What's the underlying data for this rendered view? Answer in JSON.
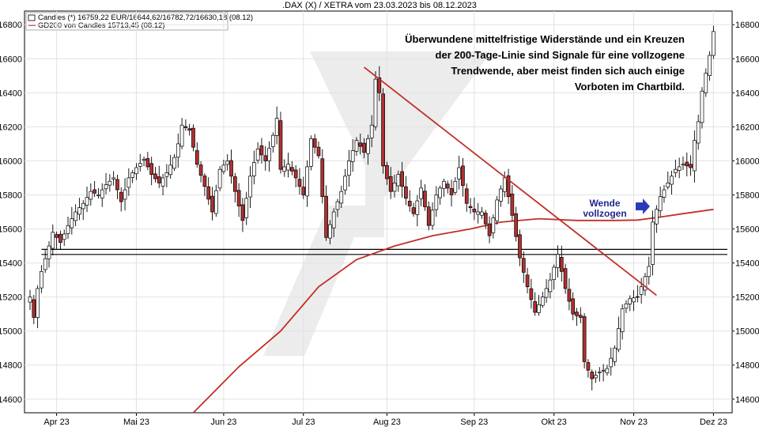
{
  "chart_data": {
    "type": "candlestick",
    "title": ".DAX (X) / XETRA vom 23.03.2023 bis 08.12.2023",
    "legend": [
      {
        "label": "Candles (*) 16759,22 EUR/16644,62/16782,72/16630,18 (08.12)",
        "color": "#ffffff"
      },
      {
        "label": "GD200 von Candles 15713,45 (08.12)",
        "color": "#c0302a"
      }
    ],
    "ylim": [
      14520,
      16880
    ],
    "yticks": [
      14600,
      14800,
      15000,
      15200,
      15400,
      15600,
      15800,
      16000,
      16200,
      16400,
      16600,
      16800
    ],
    "ytick_labels": [
      "14600",
      "14800",
      "15000",
      "15200",
      "15400",
      "15600",
      "15800",
      "16000",
      "16200",
      "16400",
      "16600",
      "16800"
    ],
    "xlim": [
      0,
      182
    ],
    "xticks": [
      7,
      28,
      51,
      72,
      94,
      117,
      138,
      159,
      180
    ],
    "xtick_labels": [
      "Apr 23",
      "Mai 23",
      "Jun 23",
      "Jul 23",
      "Aug 23",
      "Sep 23",
      "Okt 23",
      "Nov 23",
      "Dez 23"
    ],
    "anchors": [
      [
        0,
        15200
      ],
      [
        1,
        15080
      ],
      [
        2,
        15250
      ],
      [
        3,
        15350
      ],
      [
        5,
        15500
      ],
      [
        6,
        15580
      ],
      [
        8,
        15520
      ],
      [
        10,
        15620
      ],
      [
        12,
        15700
      ],
      [
        14,
        15750
      ],
      [
        16,
        15820
      ],
      [
        18,
        15800
      ],
      [
        20,
        15860
      ],
      [
        22,
        15900
      ],
      [
        24,
        15760
      ],
      [
        26,
        15900
      ],
      [
        28,
        15960
      ],
      [
        30,
        16010
      ],
      [
        32,
        15920
      ],
      [
        34,
        15870
      ],
      [
        36,
        15930
      ],
      [
        38,
        16020
      ],
      [
        39,
        16100
      ],
      [
        40,
        16210
      ],
      [
        42,
        16180
      ],
      [
        44,
        15980
      ],
      [
        46,
        15850
      ],
      [
        48,
        15700
      ],
      [
        50,
        15950
      ],
      [
        52,
        16000
      ],
      [
        54,
        15820
      ],
      [
        56,
        15650
      ],
      [
        58,
        15910
      ],
      [
        60,
        16070
      ],
      [
        62,
        16000
      ],
      [
        64,
        16150
      ],
      [
        65,
        16250
      ],
      [
        66,
        15950
      ],
      [
        68,
        15980
      ],
      [
        70,
        15900
      ],
      [
        72,
        15800
      ],
      [
        74,
        16130
      ],
      [
        76,
        16030
      ],
      [
        78,
        15550
      ],
      [
        80,
        15700
      ],
      [
        82,
        15820
      ],
      [
        84,
        16000
      ],
      [
        86,
        16120
      ],
      [
        88,
        16050
      ],
      [
        90,
        16210
      ],
      [
        91,
        16480
      ],
      [
        92,
        16400
      ],
      [
        93,
        15970
      ],
      [
        95,
        15820
      ],
      [
        97,
        15920
      ],
      [
        99,
        15780
      ],
      [
        101,
        15690
      ],
      [
        103,
        15840
      ],
      [
        105,
        15620
      ],
      [
        107,
        15800
      ],
      [
        109,
        15880
      ],
      [
        111,
        15800
      ],
      [
        113,
        15960
      ],
      [
        115,
        15750
      ],
      [
        117,
        15700
      ],
      [
        119,
        15700
      ],
      [
        121,
        15560
      ],
      [
        123,
        15770
      ],
      [
        125,
        15900
      ],
      [
        127,
        15680
      ],
      [
        129,
        15430
      ],
      [
        131,
        15260
      ],
      [
        133,
        15110
      ],
      [
        135,
        15200
      ],
      [
        137,
        15300
      ],
      [
        139,
        15450
      ],
      [
        141,
        15250
      ],
      [
        143,
        15100
      ],
      [
        145,
        15080
      ],
      [
        146,
        14820
      ],
      [
        148,
        14720
      ],
      [
        150,
        14760
      ],
      [
        152,
        14780
      ],
      [
        154,
        14900
      ],
      [
        156,
        15130
      ],
      [
        158,
        15190
      ],
      [
        160,
        15200
      ],
      [
        162,
        15320
      ],
      [
        163,
        15380
      ],
      [
        164,
        15640
      ],
      [
        166,
        15790
      ],
      [
        168,
        15870
      ],
      [
        170,
        15950
      ],
      [
        172,
        15980
      ],
      [
        174,
        15960
      ],
      [
        175,
        16120
      ],
      [
        176,
        16230
      ],
      [
        177,
        16410
      ],
      [
        179,
        16620
      ],
      [
        180,
        16760
      ]
    ],
    "gd200": [
      [
        43,
        14520
      ],
      [
        55,
        14790
      ],
      [
        66,
        15000
      ],
      [
        76,
        15260
      ],
      [
        86,
        15420
      ],
      [
        96,
        15500
      ],
      [
        106,
        15560
      ],
      [
        116,
        15600
      ],
      [
        124,
        15640
      ],
      [
        134,
        15660
      ],
      [
        144,
        15650
      ],
      [
        154,
        15650
      ],
      [
        160,
        15652
      ],
      [
        166,
        15670
      ],
      [
        172,
        15690
      ],
      [
        180,
        15715
      ]
    ],
    "trendline": [
      [
        88,
        16550
      ],
      [
        165,
        15210
      ]
    ],
    "hlines": [
      15480,
      15450
    ],
    "hline_x": [
      3,
      182
    ],
    "annotation": [
      "Überwundene mittelfristige Widerstände und ein Kreuzen",
      "der 200-Tage-Linie sind Signale für eine vollzogene",
      "Trendwende, aber meist finden sich auch einige",
      "Vorboten im Chartbild."
    ],
    "wende_label": [
      "Wende",
      "vollzogen"
    ],
    "colors": {
      "up": "#ffffff",
      "down": "#b03030",
      "ma": "#c03028",
      "frame": "#000000",
      "arrow": "#2b3bb8",
      "watermark": "#e9e9e9"
    }
  }
}
